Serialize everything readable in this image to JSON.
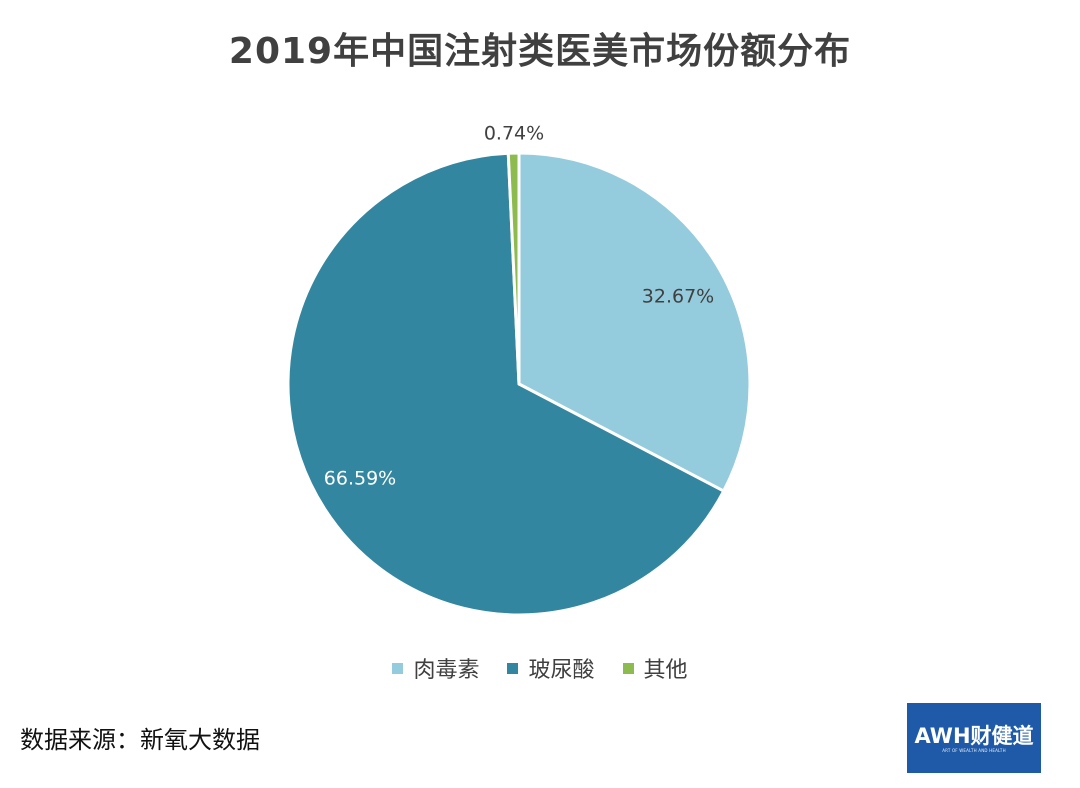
{
  "chart_data": {
    "type": "pie",
    "title": "2019年中国注射类医美市场份额分布",
    "slices": [
      {
        "label": "肉毒素",
        "value": 32.67,
        "display": "32.67%",
        "color": "#95ccdd"
      },
      {
        "label": "玻尿酸",
        "value": 66.59,
        "display": "66.59%",
        "color": "#33869f"
      },
      {
        "label": "其他",
        "value": 0.74,
        "display": "0.74%",
        "color": "#8dbb4f"
      }
    ],
    "legend_position": "bottom"
  },
  "footer": {
    "source": "数据来源：新氧大数据"
  },
  "logo": {
    "text": "AWH财健道",
    "subtext": "ART OF WEALTH AND HEALTH"
  }
}
